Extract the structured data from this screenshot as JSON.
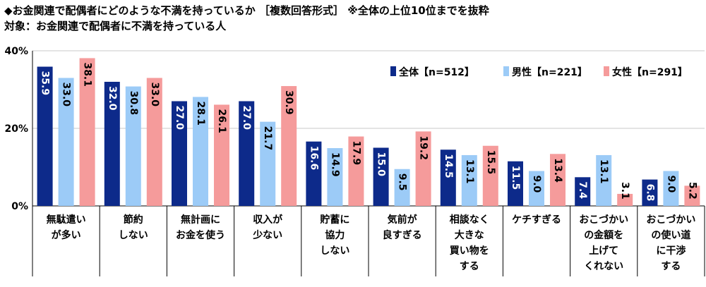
{
  "header": {
    "title": "◆お金関連で配偶者にどのような不満を持っているか ［複数回答形式］ ※全体の上位10位までを抜粋",
    "subtitle": "対象：お金関連で配偶者に不満を持っている人"
  },
  "chart_data": {
    "type": "bar",
    "ylim": [
      0,
      40
    ],
    "yticks": [
      0,
      20,
      40
    ],
    "ytick_labels": [
      "0%",
      "20%",
      "40%"
    ],
    "legend_position": "top-right",
    "categories": [
      [
        "無駄遣い",
        "が多い"
      ],
      [
        "節約",
        "しない"
      ],
      [
        "無計画に",
        "お金を使う"
      ],
      [
        "収入が",
        "少ない"
      ],
      [
        "貯蓄に",
        "協力",
        "しない"
      ],
      [
        "気前が",
        "良すぎる"
      ],
      [
        "相談なく",
        "大きな",
        "買い物を",
        "する"
      ],
      [
        "ケチすぎる"
      ],
      [
        "おこづかい",
        "の金額を",
        "上げて",
        "くれない"
      ],
      [
        "おこづかい",
        "の使い道",
        "に干渉",
        "する"
      ]
    ],
    "series": [
      {
        "name": "全体【n=512】",
        "color": "#0d2a8a",
        "label_color": "#ffffff",
        "values": [
          35.9,
          32.0,
          27.0,
          27.0,
          16.6,
          15.0,
          14.5,
          11.5,
          7.4,
          6.8
        ]
      },
      {
        "name": "男性【n=221】",
        "color": "#9ccbf7",
        "label_color": "#000000",
        "values": [
          33.0,
          30.8,
          28.1,
          21.7,
          14.9,
          9.5,
          13.1,
          9.0,
          13.1,
          9.0
        ]
      },
      {
        "name": "女性【n=291】",
        "color": "#f59b9b",
        "label_color": "#000000",
        "values": [
          38.1,
          33.0,
          26.1,
          30.9,
          17.9,
          19.2,
          15.5,
          13.4,
          3.1,
          5.2
        ]
      }
    ]
  }
}
